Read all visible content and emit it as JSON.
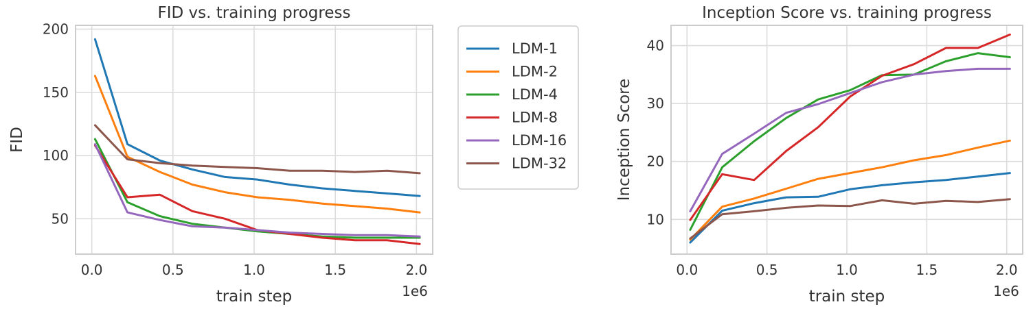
{
  "chart_data": [
    {
      "type": "line",
      "title": "FID vs. training progress",
      "xlabel": "train step",
      "ylabel": "FID",
      "x_exponent_label": "1e6",
      "xlim": [
        -0.1,
        2.1
      ],
      "ylim": [
        22,
        203
      ],
      "xticks": [
        0.0,
        0.5,
        1.0,
        1.5,
        2.0
      ],
      "xtick_labels": [
        "0.0",
        "0.5",
        "1.0",
        "1.5",
        "2.0"
      ],
      "yticks": [
        50,
        100,
        150,
        200
      ],
      "ytick_labels": [
        "50",
        "100",
        "150",
        "200"
      ],
      "grid": true,
      "x": [
        0.02,
        0.22,
        0.42,
        0.62,
        0.82,
        1.02,
        1.22,
        1.42,
        1.62,
        1.82,
        2.02
      ],
      "series": [
        {
          "name": "LDM-1",
          "color": "#1f77b4",
          "values": [
            192,
            109,
            96,
            89,
            83,
            81,
            77,
            74,
            72,
            70,
            68
          ]
        },
        {
          "name": "LDM-2",
          "color": "#ff7f0e",
          "values": [
            163,
            99,
            87,
            77,
            71,
            67,
            65,
            62,
            60,
            58,
            55
          ]
        },
        {
          "name": "LDM-4",
          "color": "#2ca02c",
          "values": [
            113,
            63,
            52,
            46,
            43,
            40,
            38,
            36,
            35,
            35,
            35
          ]
        },
        {
          "name": "LDM-8",
          "color": "#d62728",
          "values": [
            108,
            67,
            69,
            56,
            50,
            41,
            38,
            35,
            33,
            33,
            30
          ]
        },
        {
          "name": "LDM-16",
          "color": "#9467bd",
          "values": [
            109,
            55,
            49,
            44,
            43,
            41,
            39,
            38,
            37,
            37,
            36
          ]
        },
        {
          "name": "LDM-32",
          "color": "#8c564b",
          "values": [
            124,
            97,
            94,
            92,
            91,
            90,
            88,
            88,
            87,
            88,
            86
          ]
        }
      ]
    },
    {
      "type": "line",
      "title": "Inception Score vs. training progress",
      "xlabel": "train step",
      "ylabel": "Inception Score",
      "x_exponent_label": "1e6",
      "xlim": [
        -0.1,
        2.1
      ],
      "ylim": [
        4,
        43.5
      ],
      "xticks": [
        0.0,
        0.5,
        1.0,
        1.5,
        2.0
      ],
      "xtick_labels": [
        "0.0",
        "0.5",
        "1.0",
        "1.5",
        "2.0"
      ],
      "yticks": [
        10,
        20,
        30,
        40
      ],
      "ytick_labels": [
        "10",
        "20",
        "30",
        "40"
      ],
      "grid": true,
      "x": [
        0.02,
        0.22,
        0.42,
        0.62,
        0.82,
        1.02,
        1.22,
        1.42,
        1.62,
        1.82,
        2.02
      ],
      "series": [
        {
          "name": "LDM-1",
          "color": "#1f77b4",
          "values": [
            6.0,
            11.5,
            12.8,
            13.8,
            13.9,
            15.2,
            15.9,
            16.4,
            16.8,
            17.4,
            18.0
          ]
        },
        {
          "name": "LDM-2",
          "color": "#ff7f0e",
          "values": [
            6.5,
            12.2,
            13.6,
            15.3,
            17.0,
            18.0,
            19.0,
            20.2,
            21.1,
            22.4,
            23.6
          ]
        },
        {
          "name": "LDM-4",
          "color": "#2ca02c",
          "values": [
            8.2,
            19.0,
            23.5,
            27.5,
            30.7,
            32.3,
            34.9,
            35.0,
            37.3,
            38.7,
            38.0
          ]
        },
        {
          "name": "LDM-8",
          "color": "#d62728",
          "values": [
            9.9,
            17.8,
            16.8,
            21.8,
            25.9,
            31.2,
            34.8,
            36.8,
            39.6,
            39.6,
            41.9
          ]
        },
        {
          "name": "LDM-16",
          "color": "#9467bd",
          "values": [
            11.4,
            21.3,
            24.8,
            28.4,
            29.9,
            31.8,
            33.7,
            35.0,
            35.6,
            36.0,
            36.0
          ]
        },
        {
          "name": "LDM-32",
          "color": "#8c564b",
          "values": [
            6.7,
            10.9,
            11.4,
            12.0,
            12.4,
            12.3,
            13.3,
            12.7,
            13.2,
            13.0,
            13.5
          ]
        }
      ]
    }
  ],
  "legend": {
    "placement": "right of FID plot",
    "entries": [
      {
        "label": "LDM-1",
        "color": "#1f77b4"
      },
      {
        "label": "LDM-2",
        "color": "#ff7f0e"
      },
      {
        "label": "LDM-4",
        "color": "#2ca02c"
      },
      {
        "label": "LDM-8",
        "color": "#d62728"
      },
      {
        "label": "LDM-16",
        "color": "#9467bd"
      },
      {
        "label": "LDM-32",
        "color": "#8c564b"
      }
    ]
  }
}
